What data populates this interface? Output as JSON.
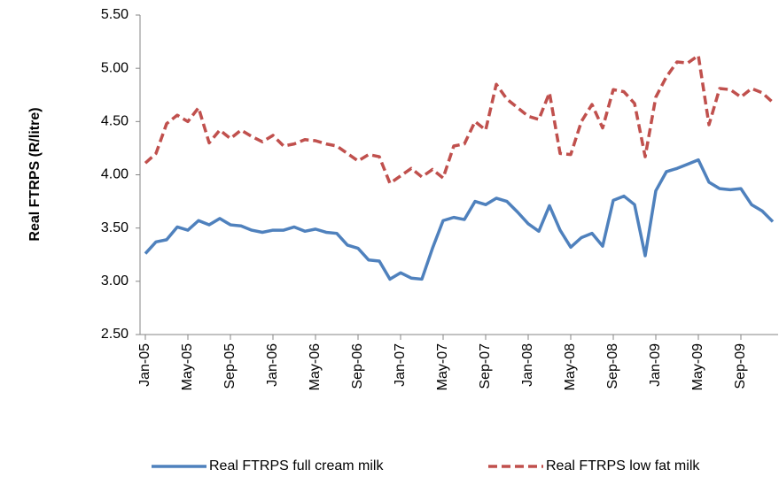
{
  "chart_data": {
    "type": "line",
    "y_label": "Real FTRPS (R/litre)",
    "categories": [
      "Jan-05",
      null,
      null,
      null,
      "May-05",
      null,
      null,
      null,
      "Sep-05",
      null,
      null,
      null,
      "Jan-06",
      null,
      null,
      null,
      "May-06",
      null,
      null,
      null,
      "Sep-06",
      null,
      null,
      null,
      "Jan-07",
      null,
      null,
      null,
      "May-07",
      null,
      null,
      null,
      "Sep-07",
      null,
      null,
      null,
      "Jan-08",
      null,
      null,
      null,
      "May-08",
      null,
      null,
      null,
      "Sep-08",
      null,
      null,
      null,
      "Jan-09",
      null,
      null,
      null,
      "May-09",
      null,
      null,
      null,
      "Sep-09",
      null,
      null,
      null
    ],
    "series": [
      {
        "name": "Real FTRPS full cream milk",
        "color": "#4f81bd",
        "dashed": false,
        "values": [
          3.26,
          3.37,
          3.39,
          3.51,
          3.48,
          3.57,
          3.53,
          3.59,
          3.53,
          3.52,
          3.48,
          3.46,
          3.48,
          3.48,
          3.51,
          3.47,
          3.49,
          3.46,
          3.45,
          3.34,
          3.31,
          3.2,
          3.19,
          3.02,
          3.08,
          3.03,
          3.02,
          3.31,
          3.57,
          3.6,
          3.58,
          3.75,
          3.72,
          3.78,
          3.75,
          3.65,
          3.54,
          3.47,
          3.71,
          3.48,
          3.32,
          3.41,
          3.45,
          3.33,
          3.76,
          3.8,
          3.72,
          3.24,
          3.85,
          4.03,
          4.06,
          4.1,
          4.14,
          3.93,
          3.87,
          3.86,
          3.87,
          3.72,
          3.66,
          3.56
        ]
      },
      {
        "name": "Real FTRPS low fat milk",
        "color": "#c0504d",
        "dashed": true,
        "values": [
          4.11,
          4.2,
          4.48,
          4.56,
          4.5,
          4.63,
          4.3,
          4.42,
          4.34,
          4.42,
          4.36,
          4.31,
          4.37,
          4.27,
          4.29,
          4.33,
          4.32,
          4.29,
          4.27,
          4.2,
          4.13,
          4.19,
          4.17,
          3.92,
          3.99,
          4.06,
          3.98,
          4.05,
          3.97,
          4.27,
          4.29,
          4.5,
          4.42,
          4.85,
          4.71,
          4.63,
          4.55,
          4.52,
          4.77,
          4.2,
          4.19,
          4.5,
          4.66,
          4.44,
          4.8,
          4.78,
          4.67,
          4.17,
          4.73,
          4.92,
          5.06,
          5.05,
          5.12,
          4.47,
          4.81,
          4.8,
          4.73,
          4.81,
          4.77,
          4.68
        ]
      }
    ],
    "ylim": [
      2.5,
      5.5
    ],
    "yticks": [
      {
        "value": 2.5,
        "label": "2.50"
      },
      {
        "value": 3,
        "label": "3.00"
      },
      {
        "value": 3.5,
        "label": "3.50"
      },
      {
        "value": 4,
        "label": "4.00"
      },
      {
        "value": 4.5,
        "label": "4.50"
      },
      {
        "value": 5,
        "label": "5.00"
      },
      {
        "value": 5.5,
        "label": "5.50"
      }
    ],
    "grid": false,
    "legend": "bottom"
  }
}
